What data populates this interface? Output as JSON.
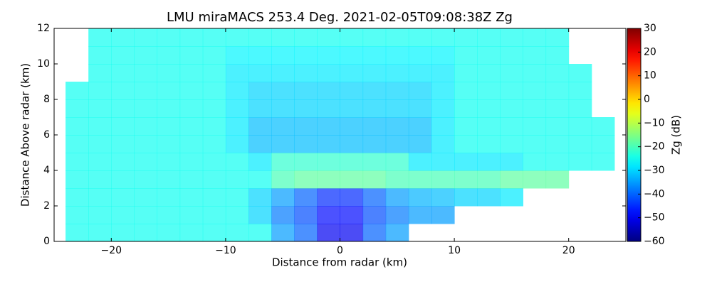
{
  "chart_data": {
    "type": "heatmap",
    "title": "LMU miraMACS 253.4 Deg. 2021-02-05T09:08:38Z  Zg",
    "xlabel": "Distance from radar (km)",
    "ylabel": "Distance Above radar  (km)",
    "colorbar_label": "Zg (dB)",
    "colormap": "jet",
    "xlim": [
      -25,
      25
    ],
    "ylim": [
      0,
      12
    ],
    "xticks": [
      {
        "value": -20,
        "label": "−20"
      },
      {
        "value": -10,
        "label": "−10"
      },
      0,
      10,
      20
    ],
    "yticks": [
      0,
      2,
      4,
      6,
      8,
      10,
      12
    ],
    "clim": [
      -60,
      30
    ],
    "cticks": [
      {
        "value": -60,
        "label": "−60"
      },
      {
        "value": -50,
        "label": "−50"
      },
      {
        "value": -40,
        "label": "−40"
      },
      {
        "value": -30,
        "label": "−30"
      },
      {
        "value": -20,
        "label": "−20"
      },
      {
        "value": -10,
        "label": "−10"
      },
      0,
      10,
      20,
      30
    ],
    "xbins": [
      -24,
      -22,
      -20,
      -18,
      -16,
      -14,
      -12,
      -10,
      -8,
      -6,
      -4,
      -2,
      0,
      2,
      4,
      6,
      8,
      10,
      12,
      14,
      16,
      18,
      20,
      22,
      24
    ],
    "ybins": [
      0,
      1,
      2,
      3,
      4,
      5,
      6,
      7,
      8,
      9,
      10,
      11,
      12
    ],
    "z": [
      [
        -25,
        -25,
        -25,
        -25,
        -25,
        -25,
        -25,
        -25,
        -25,
        -35,
        -40,
        -50,
        -50,
        -40,
        -35,
        null,
        null,
        null,
        null,
        null,
        null,
        null,
        null,
        null
      ],
      [
        -25,
        -25,
        -25,
        -25,
        -25,
        -25,
        -25,
        -25,
        -30,
        -38,
        -42,
        -48,
        -48,
        -42,
        -38,
        -35,
        -35,
        null,
        null,
        null,
        null,
        null,
        null,
        null
      ],
      [
        -25,
        -25,
        -25,
        -25,
        -25,
        -25,
        -25,
        -25,
        -30,
        -35,
        -40,
        -45,
        -45,
        -40,
        -35,
        -33,
        -32,
        -30,
        -30,
        -28,
        null,
        null,
        null,
        null
      ],
      [
        -25,
        -25,
        -25,
        -25,
        -25,
        -25,
        -25,
        -25,
        -25,
        -20,
        -18,
        -18,
        -18,
        -18,
        -20,
        -20,
        -20,
        -20,
        -20,
        -18,
        -18,
        -18,
        null,
        null
      ],
      [
        -25,
        -25,
        -25,
        -25,
        -25,
        -25,
        -25,
        -25,
        -28,
        -22,
        -22,
        -22,
        -22,
        -22,
        -22,
        -28,
        -28,
        -28,
        -28,
        -28,
        -25,
        -25,
        -25,
        -25
      ],
      [
        -25,
        -25,
        -25,
        -25,
        -25,
        -25,
        -25,
        -28,
        -32,
        -32,
        -32,
        -32,
        -32,
        -32,
        -32,
        -32,
        -28,
        -25,
        -25,
        -25,
        -25,
        -25,
        -25,
        -25
      ],
      [
        -25,
        -25,
        -25,
        -25,
        -25,
        -25,
        -25,
        -28,
        -32,
        -32,
        -32,
        -32,
        -32,
        -32,
        -32,
        -32,
        -28,
        -25,
        -25,
        -25,
        -25,
        -25,
        -25,
        -25
      ],
      [
        -25,
        -25,
        -25,
        -25,
        -25,
        -25,
        -25,
        -28,
        -30,
        -30,
        -30,
        -30,
        -30,
        -30,
        -30,
        -30,
        -28,
        -25,
        -25,
        -25,
        -25,
        -25,
        -25,
        null
      ],
      [
        -25,
        -25,
        -25,
        -25,
        -25,
        -25,
        -25,
        -28,
        -30,
        -30,
        -30,
        -30,
        -30,
        -30,
        -30,
        -30,
        -28,
        -25,
        -25,
        -25,
        -25,
        -25,
        -25,
        null
      ],
      [
        null,
        -25,
        -25,
        -25,
        -25,
        -25,
        -25,
        -28,
        -28,
        -28,
        -28,
        -28,
        -28,
        -28,
        -28,
        -28,
        -28,
        -25,
        -25,
        -25,
        -25,
        -25,
        -25,
        null
      ],
      [
        null,
        -25,
        -25,
        -25,
        -25,
        -25,
        -25,
        -27,
        -27,
        -27,
        -27,
        -27,
        -27,
        -27,
        -27,
        -27,
        -27,
        -25,
        -25,
        -25,
        -25,
        -25,
        null,
        null
      ],
      [
        null,
        -25,
        -25,
        -25,
        -25,
        -25,
        -25,
        -25,
        -25,
        -25,
        -25,
        -25,
        -25,
        -25,
        -25,
        -25,
        -25,
        -25,
        -25,
        -25,
        -25,
        -25,
        null,
        null
      ]
    ]
  }
}
